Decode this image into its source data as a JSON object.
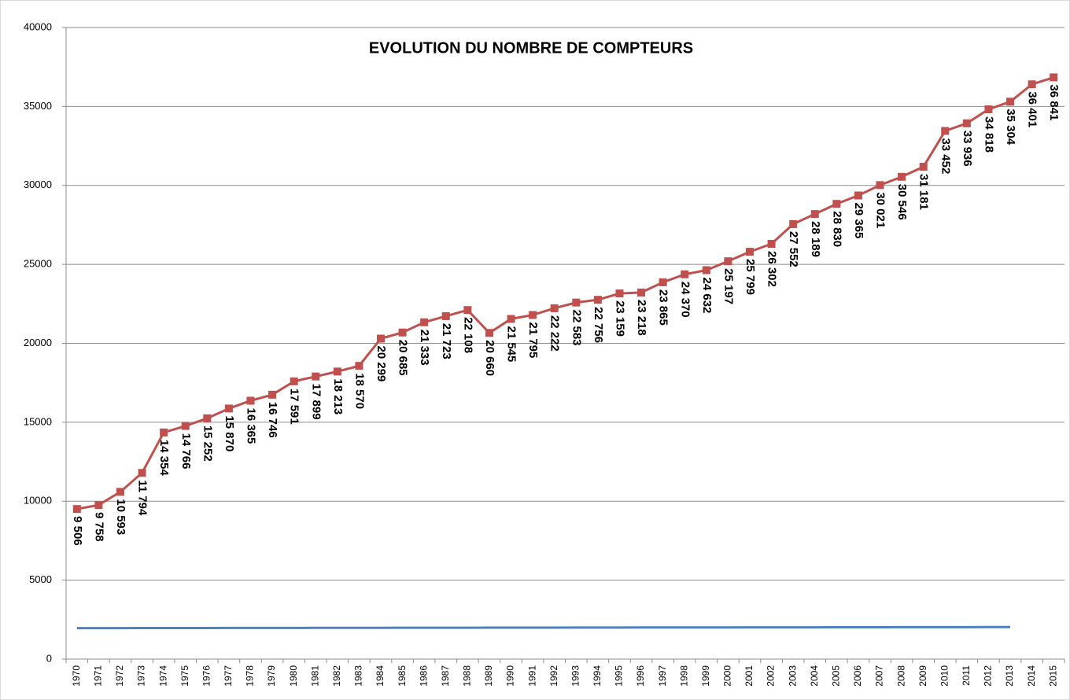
{
  "chart_data": {
    "type": "line",
    "title": "EVOLUTION DU NOMBRE DE COMPTEURS",
    "categories": [
      "1970",
      "1971",
      "1972",
      "1973",
      "1974",
      "1975",
      "1976",
      "1977",
      "1978",
      "1979",
      "1980",
      "1981",
      "1982",
      "1983",
      "1984",
      "1985",
      "1986",
      "1987",
      "1988",
      "1989",
      "1990",
      "1991",
      "1992",
      "1993",
      "1994",
      "1995",
      "1996",
      "1997",
      "1998",
      "1999",
      "2000",
      "2001",
      "2002",
      "2003",
      "2004",
      "2005",
      "2006",
      "2007",
      "2008",
      "2009",
      "2010",
      "2011",
      "2012",
      "2013",
      "2014",
      "2015"
    ],
    "series": [
      {
        "color": "#c0504d",
        "marker": "square",
        "values": [
          9506,
          9758,
          10593,
          11794,
          14354,
          14766,
          15252,
          15870,
          16365,
          16746,
          17591,
          17899,
          18213,
          18570,
          20299,
          20685,
          21333,
          21723,
          22108,
          20660,
          21545,
          21795,
          22222,
          22583,
          22756,
          23159,
          23218,
          23865,
          24370,
          24632,
          25197,
          25799,
          26302,
          27552,
          28189,
          28830,
          29365,
          30021,
          30546,
          31181,
          33452,
          33936,
          34818,
          35304,
          36401,
          36841
        ],
        "value_labels": [
          "9 506",
          "9 758",
          "10 593",
          "11 794",
          "14 354",
          "14 766",
          "15 252",
          "15 870",
          "16 365",
          "16 746",
          "17 591",
          "17 899",
          "18 213",
          "18 570",
          "20 299",
          "20 685",
          "21 333",
          "21 723",
          "22 108",
          "20 660",
          "21 545",
          "21 795",
          "22 222",
          "22 583",
          "22 756",
          "23 159",
          "23 218",
          "23 865",
          "24 370",
          "24 632",
          "25 197",
          "25 799",
          "26 302",
          "27 552",
          "28 189",
          "28 830",
          "29 365",
          "30 021",
          "30 546",
          "31 181",
          "33 452",
          "33 936",
          "34 818",
          "35 304",
          "36 401",
          "36 841"
        ]
      },
      {
        "color": "#4f81bd",
        "values": [
          1960,
          1962,
          1963,
          1965,
          1966,
          1968,
          1970,
          1971,
          1973,
          1974,
          1976,
          1978,
          1979,
          1981,
          1982,
          1984,
          1986,
          1987,
          1989,
          1990,
          1992,
          1994,
          1995,
          1997,
          1998,
          2000,
          2002,
          2003,
          2005,
          2006,
          2008,
          2010,
          2011,
          2013,
          2014,
          2016,
          2018,
          2019,
          2021,
          2022,
          2024,
          2026,
          2027,
          2030,
          null,
          null
        ]
      }
    ],
    "ylim": [
      0,
      40000
    ],
    "yticks": [
      0,
      5000,
      10000,
      15000,
      20000,
      25000,
      30000,
      35000,
      40000
    ],
    "grid": true
  }
}
